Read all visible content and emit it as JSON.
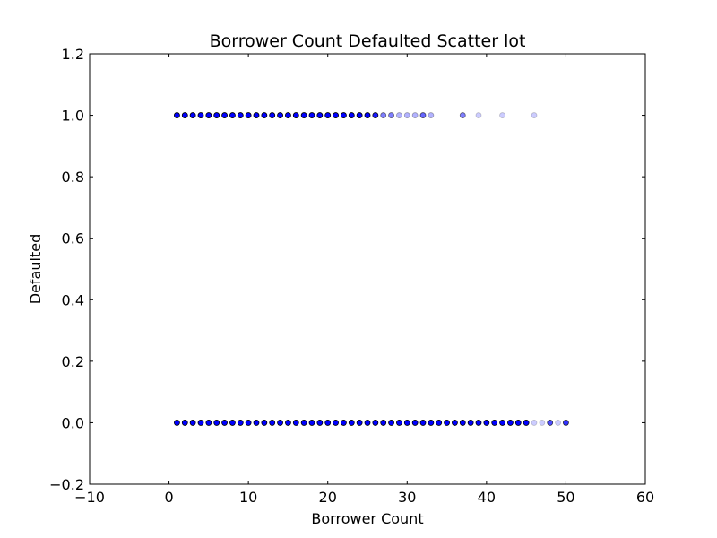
{
  "chart_data": {
    "type": "scatter",
    "title": "Borrower Count Defaulted Scatter lot",
    "xlabel": "Borrower Count",
    "ylabel": "Defaulted",
    "xlim": [
      -10,
      60
    ],
    "ylim": [
      -0.2,
      1.2
    ],
    "xticks": [
      -10,
      0,
      10,
      20,
      30,
      40,
      50,
      60
    ],
    "yticks": [
      -0.2,
      0.0,
      0.2,
      0.4,
      0.6,
      0.8,
      1.0,
      1.2
    ],
    "xtick_labels": [
      "−10",
      "0",
      "10",
      "20",
      "30",
      "40",
      "50",
      "60"
    ],
    "ytick_labels": [
      "−0.2",
      "0.0",
      "0.2",
      "0.4",
      "0.6",
      "0.8",
      "1.0",
      "1.2"
    ],
    "grid": false,
    "marker_color": "#0000ff",
    "marker_edge_color": "#000000",
    "points": [
      {
        "x": 1,
        "y": 1,
        "alpha": 1.0
      },
      {
        "x": 2,
        "y": 1,
        "alpha": 1.0
      },
      {
        "x": 3,
        "y": 1,
        "alpha": 1.0
      },
      {
        "x": 4,
        "y": 1,
        "alpha": 1.0
      },
      {
        "x": 5,
        "y": 1,
        "alpha": 1.0
      },
      {
        "x": 6,
        "y": 1,
        "alpha": 1.0
      },
      {
        "x": 7,
        "y": 1,
        "alpha": 1.0
      },
      {
        "x": 8,
        "y": 1,
        "alpha": 1.0
      },
      {
        "x": 9,
        "y": 1,
        "alpha": 1.0
      },
      {
        "x": 10,
        "y": 1,
        "alpha": 1.0
      },
      {
        "x": 11,
        "y": 1,
        "alpha": 1.0
      },
      {
        "x": 12,
        "y": 1,
        "alpha": 1.0
      },
      {
        "x": 13,
        "y": 1,
        "alpha": 1.0
      },
      {
        "x": 14,
        "y": 1,
        "alpha": 1.0
      },
      {
        "x": 15,
        "y": 1,
        "alpha": 1.0
      },
      {
        "x": 16,
        "y": 1,
        "alpha": 1.0
      },
      {
        "x": 17,
        "y": 1,
        "alpha": 1.0
      },
      {
        "x": 18,
        "y": 1,
        "alpha": 1.0
      },
      {
        "x": 19,
        "y": 1,
        "alpha": 1.0
      },
      {
        "x": 20,
        "y": 1,
        "alpha": 1.0
      },
      {
        "x": 21,
        "y": 1,
        "alpha": 1.0
      },
      {
        "x": 22,
        "y": 1,
        "alpha": 1.0
      },
      {
        "x": 23,
        "y": 1,
        "alpha": 1.0
      },
      {
        "x": 24,
        "y": 1,
        "alpha": 1.0
      },
      {
        "x": 25,
        "y": 1,
        "alpha": 1.0
      },
      {
        "x": 26,
        "y": 1,
        "alpha": 0.9
      },
      {
        "x": 27,
        "y": 1,
        "alpha": 0.5
      },
      {
        "x": 28,
        "y": 1,
        "alpha": 0.5
      },
      {
        "x": 29,
        "y": 1,
        "alpha": 0.3
      },
      {
        "x": 30,
        "y": 1,
        "alpha": 0.3
      },
      {
        "x": 31,
        "y": 1,
        "alpha": 0.3
      },
      {
        "x": 32,
        "y": 1,
        "alpha": 0.6
      },
      {
        "x": 33,
        "y": 1,
        "alpha": 0.3
      },
      {
        "x": 37,
        "y": 1,
        "alpha": 0.5
      },
      {
        "x": 39,
        "y": 1,
        "alpha": 0.2
      },
      {
        "x": 42,
        "y": 1,
        "alpha": 0.2
      },
      {
        "x": 46,
        "y": 1,
        "alpha": 0.2
      },
      {
        "x": 1,
        "y": 0,
        "alpha": 1.0
      },
      {
        "x": 2,
        "y": 0,
        "alpha": 1.0
      },
      {
        "x": 3,
        "y": 0,
        "alpha": 1.0
      },
      {
        "x": 4,
        "y": 0,
        "alpha": 1.0
      },
      {
        "x": 5,
        "y": 0,
        "alpha": 1.0
      },
      {
        "x": 6,
        "y": 0,
        "alpha": 1.0
      },
      {
        "x": 7,
        "y": 0,
        "alpha": 1.0
      },
      {
        "x": 8,
        "y": 0,
        "alpha": 1.0
      },
      {
        "x": 9,
        "y": 0,
        "alpha": 1.0
      },
      {
        "x": 10,
        "y": 0,
        "alpha": 1.0
      },
      {
        "x": 11,
        "y": 0,
        "alpha": 1.0
      },
      {
        "x": 12,
        "y": 0,
        "alpha": 1.0
      },
      {
        "x": 13,
        "y": 0,
        "alpha": 1.0
      },
      {
        "x": 14,
        "y": 0,
        "alpha": 1.0
      },
      {
        "x": 15,
        "y": 0,
        "alpha": 1.0
      },
      {
        "x": 16,
        "y": 0,
        "alpha": 1.0
      },
      {
        "x": 17,
        "y": 0,
        "alpha": 1.0
      },
      {
        "x": 18,
        "y": 0,
        "alpha": 1.0
      },
      {
        "x": 19,
        "y": 0,
        "alpha": 1.0
      },
      {
        "x": 20,
        "y": 0,
        "alpha": 1.0
      },
      {
        "x": 21,
        "y": 0,
        "alpha": 1.0
      },
      {
        "x": 22,
        "y": 0,
        "alpha": 1.0
      },
      {
        "x": 23,
        "y": 0,
        "alpha": 1.0
      },
      {
        "x": 24,
        "y": 0,
        "alpha": 1.0
      },
      {
        "x": 25,
        "y": 0,
        "alpha": 1.0
      },
      {
        "x": 26,
        "y": 0,
        "alpha": 1.0
      },
      {
        "x": 27,
        "y": 0,
        "alpha": 1.0
      },
      {
        "x": 28,
        "y": 0,
        "alpha": 1.0
      },
      {
        "x": 29,
        "y": 0,
        "alpha": 1.0
      },
      {
        "x": 30,
        "y": 0,
        "alpha": 1.0
      },
      {
        "x": 31,
        "y": 0,
        "alpha": 1.0
      },
      {
        "x": 32,
        "y": 0,
        "alpha": 1.0
      },
      {
        "x": 33,
        "y": 0,
        "alpha": 1.0
      },
      {
        "x": 34,
        "y": 0,
        "alpha": 1.0
      },
      {
        "x": 35,
        "y": 0,
        "alpha": 1.0
      },
      {
        "x": 36,
        "y": 0,
        "alpha": 1.0
      },
      {
        "x": 37,
        "y": 0,
        "alpha": 1.0
      },
      {
        "x": 38,
        "y": 0,
        "alpha": 1.0
      },
      {
        "x": 39,
        "y": 0,
        "alpha": 1.0
      },
      {
        "x": 40,
        "y": 0,
        "alpha": 1.0
      },
      {
        "x": 41,
        "y": 0,
        "alpha": 1.0
      },
      {
        "x": 42,
        "y": 0,
        "alpha": 1.0
      },
      {
        "x": 43,
        "y": 0,
        "alpha": 1.0
      },
      {
        "x": 44,
        "y": 0,
        "alpha": 1.0
      },
      {
        "x": 45,
        "y": 0,
        "alpha": 1.0
      },
      {
        "x": 46,
        "y": 0,
        "alpha": 0.2
      },
      {
        "x": 47,
        "y": 0,
        "alpha": 0.2
      },
      {
        "x": 48,
        "y": 0,
        "alpha": 0.7
      },
      {
        "x": 49,
        "y": 0,
        "alpha": 0.2
      },
      {
        "x": 50,
        "y": 0,
        "alpha": 0.8
      }
    ]
  }
}
